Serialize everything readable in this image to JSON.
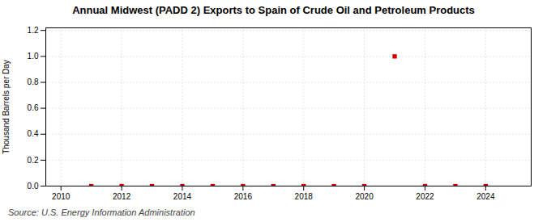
{
  "chart_data": {
    "type": "scatter",
    "title": "Annual Midwest (PADD 2) Exports to Spain of Crude Oil and Petroleum Products",
    "ylabel": "Thousand Barrels per Day",
    "annotations": [
      "Source: U.S. Energy Information Administration"
    ],
    "x": [
      2011,
      2012,
      2013,
      2014,
      2015,
      2016,
      2017,
      2018,
      2019,
      2020,
      2021,
      2022,
      2023,
      2024
    ],
    "values": [
      0.0,
      0.0,
      0.0,
      0.0,
      0.0,
      0.0,
      0.0,
      0.0,
      0.0,
      0.0,
      1.0,
      0.0,
      0.0,
      0.0
    ],
    "color": "#cc0000",
    "marker": "square",
    "xlim": [
      2009.5,
      2025.5
    ],
    "ylim": [
      0.0,
      1.22
    ],
    "xticks": [
      2010,
      2012,
      2014,
      2016,
      2018,
      2020,
      2022,
      2024
    ],
    "yticks": [
      {
        "value": 0.0,
        "label": "0.0"
      },
      {
        "value": 0.2,
        "label": "0.2"
      },
      {
        "value": 0.4,
        "label": "0.4"
      },
      {
        "value": 0.6,
        "label": "0.6"
      },
      {
        "value": 0.8,
        "label": "0.8"
      },
      {
        "value": 1.0,
        "label": "1.0"
      },
      {
        "value": 1.2,
        "label": "1.2"
      }
    ],
    "grid": true
  }
}
